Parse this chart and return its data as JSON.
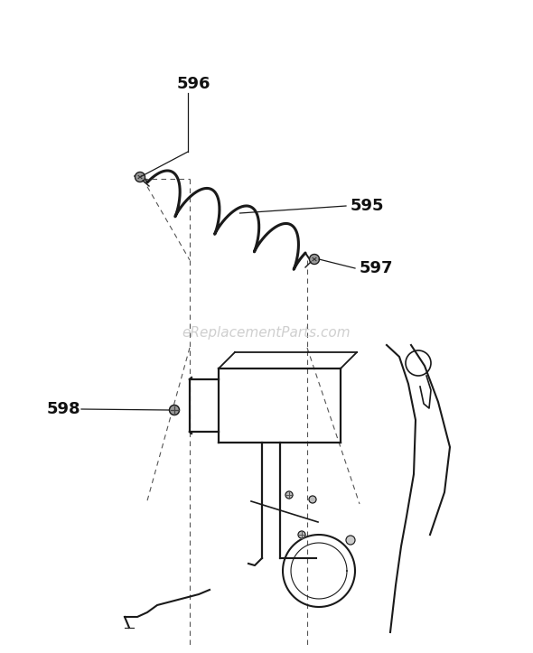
{
  "bg_color": "#ffffff",
  "line_color": "#1a1a1a",
  "dashed_color": "#333333",
  "watermark_color": "#bbbbbb",
  "watermark_text": "eReplacementParts.com",
  "label_fontsize": 13,
  "label_fontweight": "bold"
}
